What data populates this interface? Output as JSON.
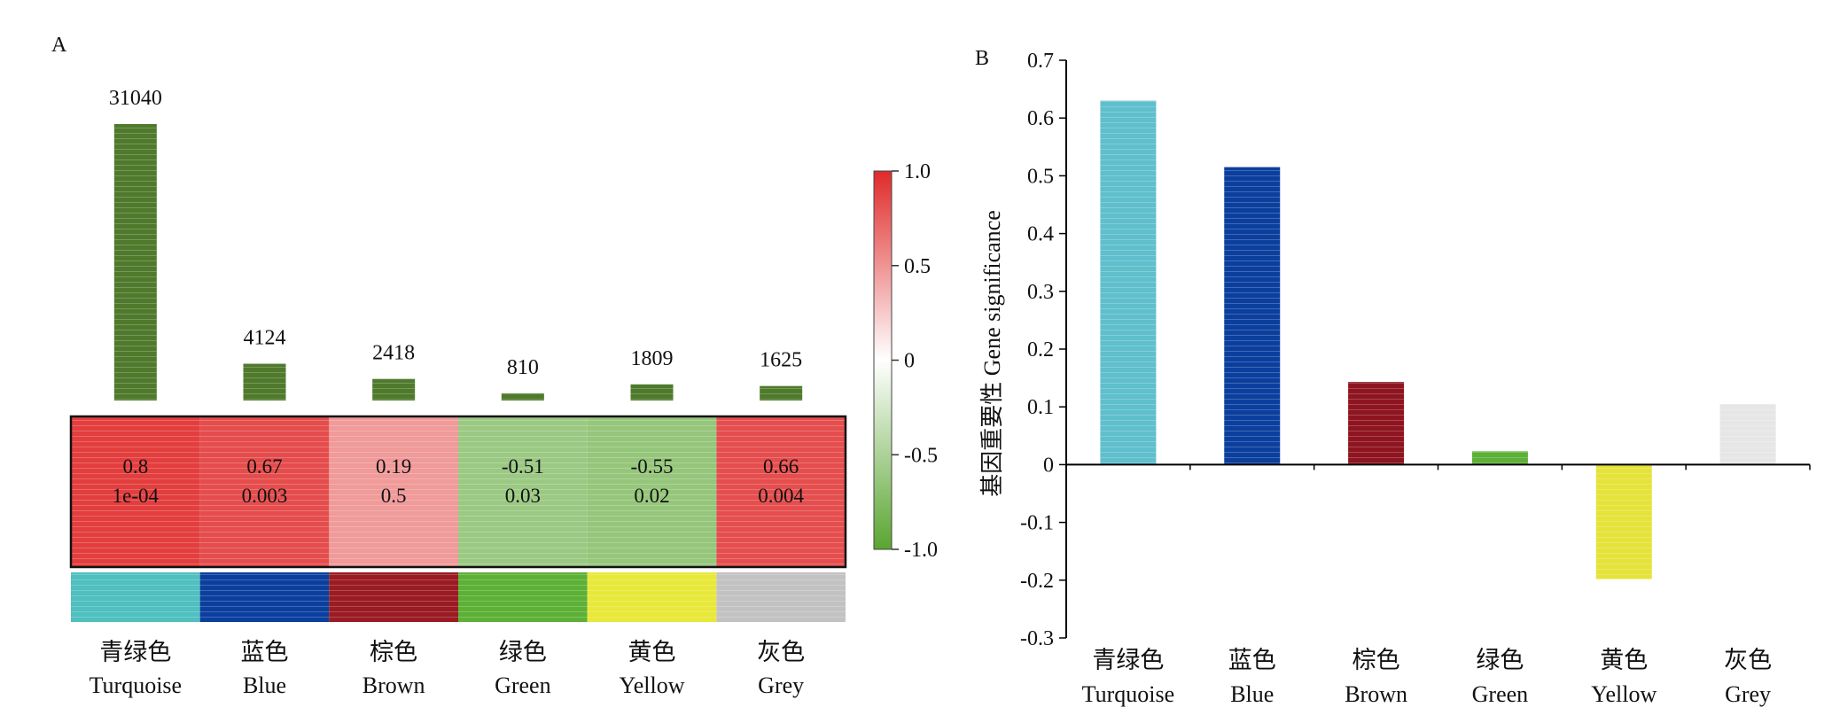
{
  "panel_a": {
    "label": "A",
    "bar_color": "#4f7a2c",
    "cell_text_color": "#111111",
    "colorbar": {
      "ticks": [
        "1.0",
        "0.5",
        "0",
        "-0.5",
        "-1.0"
      ],
      "tick_values": [
        1.0,
        0.5,
        0,
        -0.5,
        -1.0
      ],
      "high_color": "#e02a2a",
      "mid_color": "#ffffff",
      "low_color": "#5aa531"
    }
  },
  "panel_b": {
    "label": "B",
    "axis_color": "#000000"
  },
  "chart_data": [
    {
      "type": "bar",
      "panel": "A",
      "title": "",
      "categories": [
        {
          "zh": "青绿色",
          "en": "Turquoise"
        },
        {
          "zh": "蓝色",
          "en": "Blue"
        },
        {
          "zh": "棕色",
          "en": "Brown"
        },
        {
          "zh": "绿色",
          "en": "Green"
        },
        {
          "zh": "黄色",
          "en": "Yellow"
        },
        {
          "zh": "灰色",
          "en": "Grey"
        }
      ],
      "module_colors": [
        "#4fbfbf",
        "#0b3f9e",
        "#9a1b22",
        "#5cb036",
        "#e8e83a",
        "#c2c2c2"
      ],
      "values": [
        31040,
        4124,
        2418,
        810,
        1809,
        1625
      ],
      "value_labels": [
        "31040",
        "4124",
        "2418",
        "810",
        "1809",
        "1625"
      ],
      "heatmap": {
        "type": "heatmap",
        "correlation": [
          0.8,
          0.67,
          0.19,
          -0.51,
          -0.55,
          0.66
        ],
        "correlation_labels": [
          "0.8",
          "0.67",
          "0.19",
          "-0.51",
          "-0.55",
          "0.66"
        ],
        "p_values": [
          "1e-04",
          "0.003",
          "0.5",
          "0.03",
          "0.02",
          "0.004"
        ],
        "range": [
          -1.0,
          1.0
        ]
      }
    },
    {
      "type": "bar",
      "panel": "B",
      "title": "",
      "xlabel": "",
      "ylabel": "基因重要性 Gene significance",
      "categories": [
        {
          "zh": "青绿色",
          "en": "Turquoise"
        },
        {
          "zh": "蓝色",
          "en": "Blue"
        },
        {
          "zh": "棕色",
          "en": "Brown"
        },
        {
          "zh": "绿色",
          "en": "Green"
        },
        {
          "zh": "黄色",
          "en": "Yellow"
        },
        {
          "zh": "灰色",
          "en": "Grey"
        }
      ],
      "values": [
        0.63,
        0.515,
        0.143,
        0.023,
        -0.198,
        0.105
      ],
      "colors": [
        "#5fbfcc",
        "#0b3f9e",
        "#8e1520",
        "#5cb036",
        "#e5e33a",
        "#e6e6e6"
      ],
      "ylim": [
        -0.3,
        0.7
      ],
      "yticks": [
        "0.7",
        "0.6",
        "0.5",
        "0.4",
        "0.3",
        "0.2",
        "0.1",
        "0",
        "-0.1",
        "-0.2",
        "-0.3"
      ],
      "ytick_values": [
        0.7,
        0.6,
        0.5,
        0.4,
        0.3,
        0.2,
        0.1,
        0,
        -0.1,
        -0.2,
        -0.3
      ],
      "grid": false,
      "legend": "none"
    }
  ]
}
